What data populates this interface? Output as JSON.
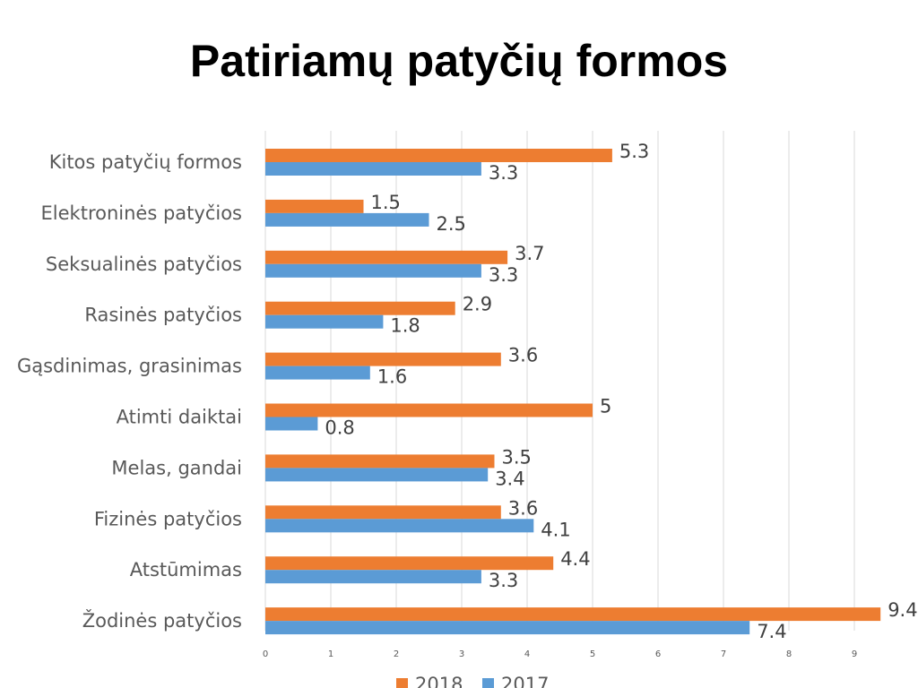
{
  "title": "Patiriamų patyčių formos",
  "colors": {
    "2018": "#ED7D31",
    "2017": "#5B9BD5",
    "grid": "#D9D9D9"
  },
  "chart_data": {
    "type": "bar",
    "orientation": "horizontal",
    "title": "",
    "xlabel": "",
    "ylabel": "",
    "xlim": [
      0,
      9
    ],
    "xticks": [
      0,
      1,
      2,
      3,
      4,
      5,
      6,
      7,
      8,
      9
    ],
    "grid": true,
    "legend_position": "bottom",
    "categories": [
      "Kitos patyčių formos",
      "Elektroninės patyčios",
      "Seksualinės patyčios",
      "Rasinės patyčios",
      "Gąsdinimas, grasinimas",
      "Atimti daiktai",
      "Melas, gandai",
      "Fizinės patyčios",
      "Atstūmimas",
      "Žodinės patyčios"
    ],
    "series": [
      {
        "name": "2018",
        "color": "#ED7D31",
        "values": [
          5.3,
          1.5,
          3.7,
          2.9,
          3.6,
          5,
          3.5,
          3.6,
          4.4,
          9.4
        ]
      },
      {
        "name": "2017",
        "color": "#5B9BD5",
        "values": [
          3.3,
          2.5,
          3.3,
          1.8,
          1.6,
          0.8,
          3.4,
          4.1,
          3.3,
          7.4
        ]
      }
    ]
  }
}
